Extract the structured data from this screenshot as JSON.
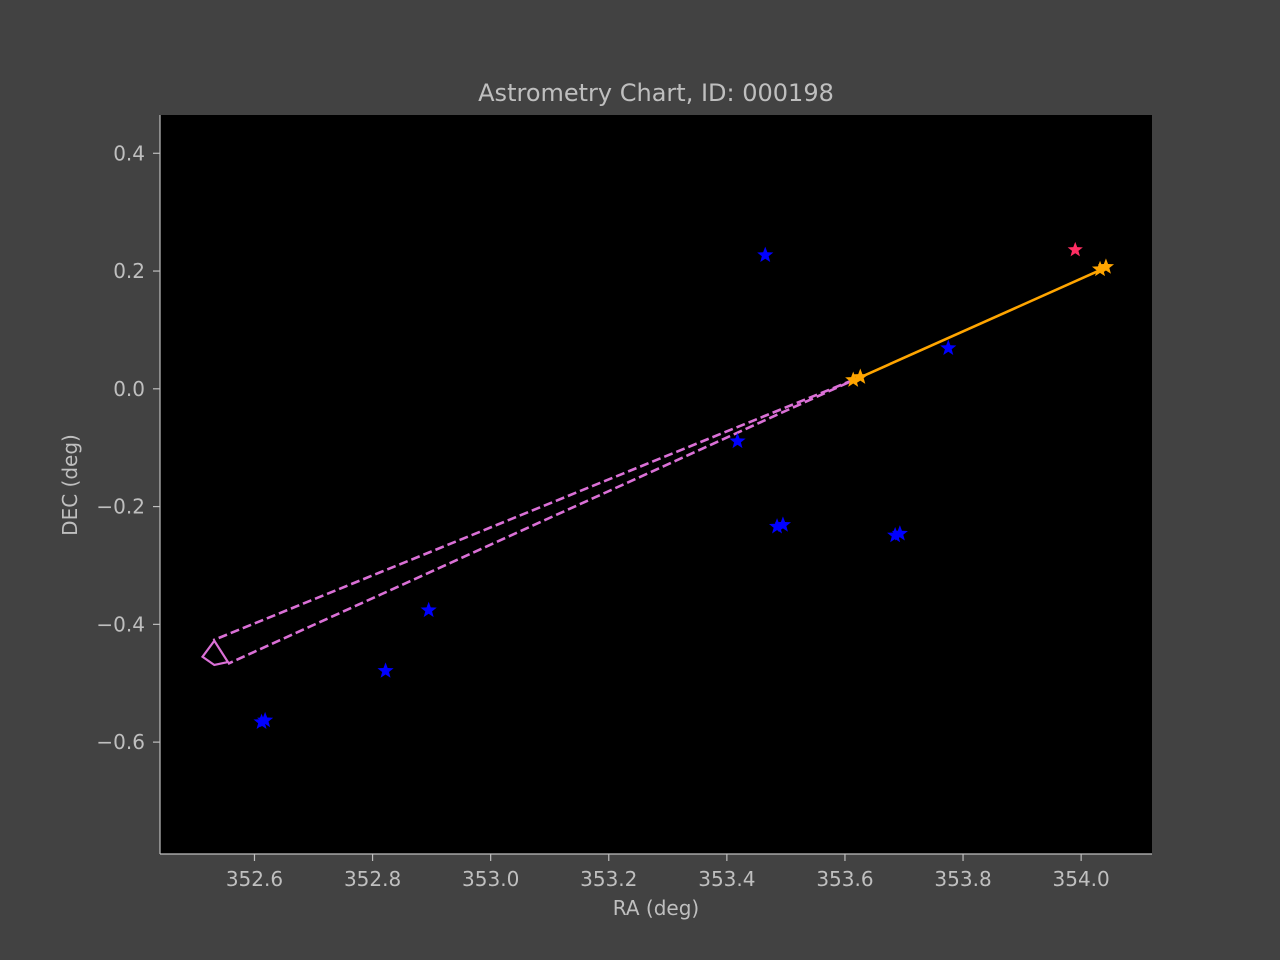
{
  "chart_data": {
    "type": "scatter",
    "title": "Astrometry Chart, ID: 000198",
    "xlabel": "RA (deg)",
    "ylabel": "DEC (deg)",
    "xlim": [
      352.44,
      354.12
    ],
    "ylim": [
      -0.79,
      0.465
    ],
    "xticks": [
      352.6,
      352.8,
      353.0,
      353.2,
      353.4,
      353.6,
      353.8,
      354.0
    ],
    "xtick_labels": [
      "352.6",
      "352.8",
      "353.0",
      "353.2",
      "353.4",
      "353.6",
      "353.8",
      "354.0"
    ],
    "yticks": [
      0.4,
      0.2,
      0.0,
      -0.2,
      -0.4,
      -0.6
    ],
    "ytick_labels": [
      "0.4",
      "0.2",
      "0.0",
      "−0.2",
      "−0.4",
      "−0.6"
    ],
    "grid": false,
    "background_color": "#000000",
    "figure_color": "#424242",
    "stars": {
      "color": "#0000ff",
      "points": [
        {
          "x": 353.465,
          "y": 0.227
        },
        {
          "x": 353.775,
          "y": 0.069
        },
        {
          "x": 353.418,
          "y": -0.089
        },
        {
          "x": 353.485,
          "y": -0.234
        },
        {
          "x": 353.495,
          "y": -0.231
        },
        {
          "x": 353.685,
          "y": -0.249
        },
        {
          "x": 353.693,
          "y": -0.246
        },
        {
          "x": 352.895,
          "y": -0.376
        },
        {
          "x": 352.822,
          "y": -0.479
        },
        {
          "x": 352.618,
          "y": -0.563
        },
        {
          "x": 352.612,
          "y": -0.566
        }
      ]
    },
    "target": {
      "color": "#ff2e63",
      "points": [
        {
          "x": 353.99,
          "y": 0.236
        }
      ]
    },
    "track": {
      "color": "#ffa500",
      "line": [
        [
          353.618,
          0.016
        ],
        [
          354.04,
          0.205
        ]
      ],
      "points": [
        {
          "x": 353.614,
          "y": 0.015
        },
        {
          "x": 353.626,
          "y": 0.02
        },
        {
          "x": 354.032,
          "y": 0.203
        },
        {
          "x": 354.042,
          "y": 0.207
        }
      ]
    },
    "projection": {
      "color": "#da70d6",
      "line1": [
        [
          353.614,
          0.015
        ],
        [
          352.53,
          -0.427
        ]
      ],
      "line2": [
        [
          353.626,
          0.02
        ],
        [
          352.555,
          -0.467
        ]
      ],
      "box": [
        [
          352.512,
          -0.455
        ],
        [
          352.532,
          -0.428
        ],
        [
          352.555,
          -0.464
        ],
        [
          352.532,
          -0.469
        ]
      ]
    }
  }
}
